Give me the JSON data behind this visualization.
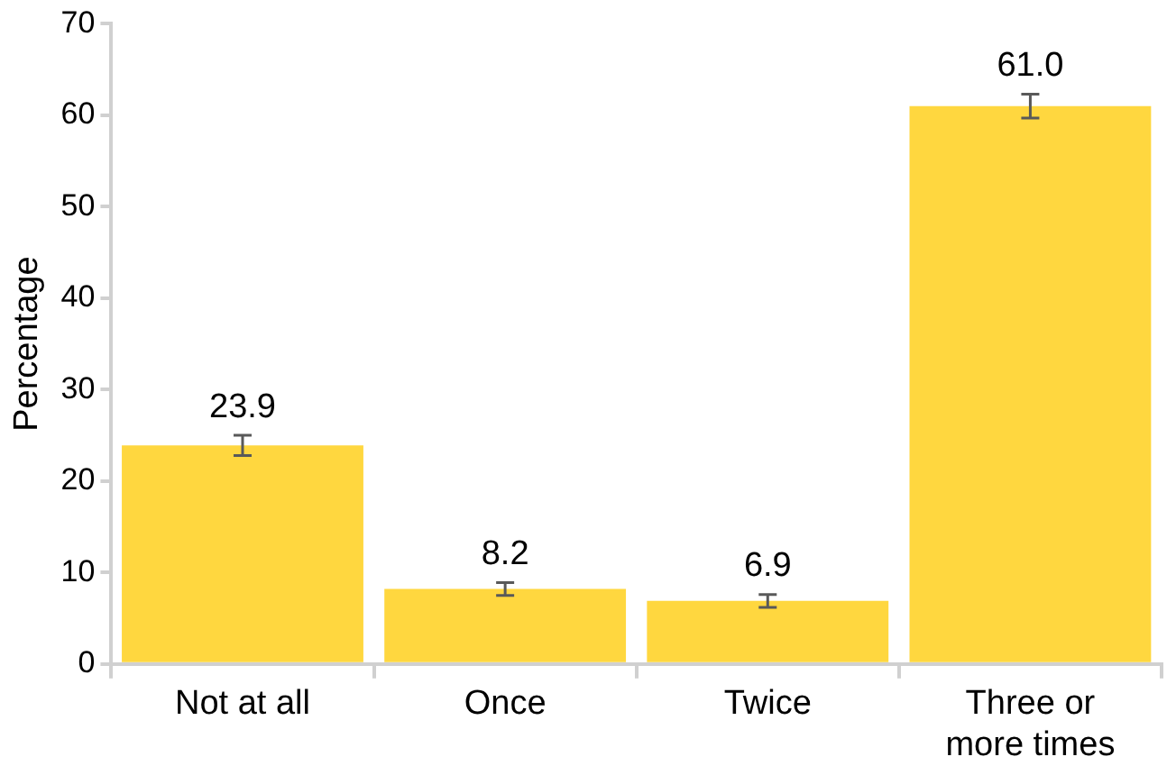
{
  "chart_data": {
    "type": "bar",
    "ylabel": "Percentage",
    "categories": [
      "Not at all",
      "Once",
      "Twice",
      "Three or more times"
    ],
    "values": [
      23.9,
      8.2,
      6.9,
      61.0
    ],
    "errors": [
      1.1,
      0.7,
      0.7,
      1.3
    ],
    "value_labels": [
      "23.9",
      "8.2",
      "6.9",
      "61.0"
    ],
    "color": "#ffd73f",
    "ylim": [
      0,
      70
    ],
    "yticks": [
      0,
      10,
      20,
      30,
      40,
      50,
      60,
      70
    ],
    "grid": false,
    "legend": false
  }
}
